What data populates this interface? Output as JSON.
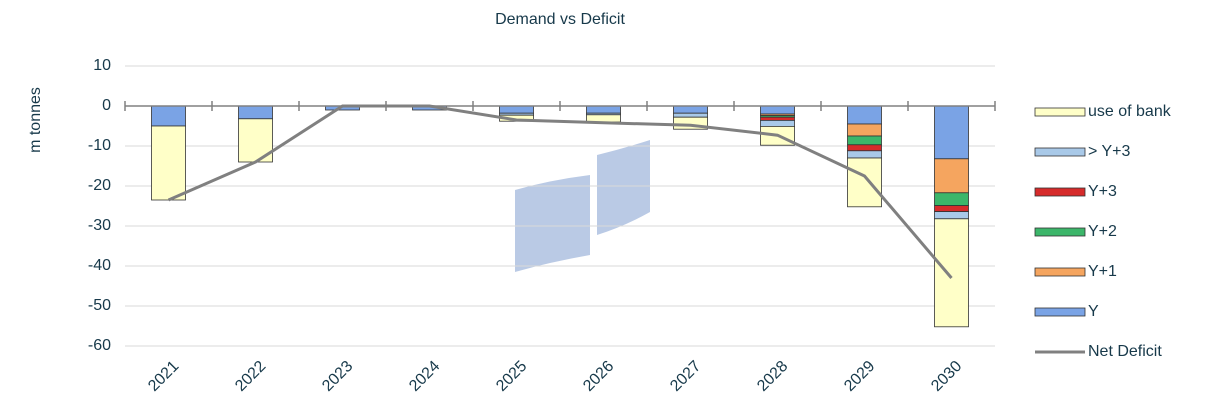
{
  "chart_data": {
    "type": "stacked_bar_line",
    "title": "Demand vs Deficit",
    "y_label": "m tonnes",
    "categories": [
      "2021",
      "2022",
      "2023",
      "2024",
      "2025",
      "2026",
      "2027",
      "2028",
      "2029",
      "2030"
    ],
    "ylim": [
      -60,
      10
    ],
    "yticks": [
      10,
      0,
      -10,
      -20,
      -30,
      -40,
      -50,
      -60
    ],
    "grid": true,
    "series": [
      {
        "name": "Y",
        "type": "bar",
        "color": "#7aa3e5",
        "values": [
          -5,
          -3.2,
          -1,
          -1,
          -1.8,
          -1.8,
          -1.8,
          -2,
          -4.5,
          -13.2
        ]
      },
      {
        "name": "Y+1",
        "type": "bar",
        "color": "#f5a55f",
        "values": [
          0,
          0,
          0,
          0,
          0,
          0,
          0,
          -0.4,
          -3,
          -8.5
        ]
      },
      {
        "name": "Y+2",
        "type": "bar",
        "color": "#3cb66a",
        "values": [
          0,
          0,
          0,
          0,
          0,
          0,
          0,
          -0.4,
          -2.2,
          -3.2
        ]
      },
      {
        "name": "Y+3",
        "type": "bar",
        "color": "#d62b2b",
        "values": [
          0,
          0,
          0,
          0,
          0,
          0,
          0,
          -0.8,
          -1.5,
          -1.5
        ]
      },
      {
        "name": "> Y+3",
        "type": "bar",
        "color": "#a9c9e8",
        "values": [
          0,
          0,
          0,
          0,
          -0.5,
          -0.4,
          -1,
          -1.5,
          -1.8,
          -1.8
        ]
      },
      {
        "name": "use of bank",
        "type": "bar",
        "color": "#ffffc8",
        "values": [
          -18.5,
          -10.8,
          0,
          0,
          -1.5,
          -1.8,
          -3,
          -4.7,
          -12.2,
          -27
        ]
      },
      {
        "name": "Net Deficit",
        "type": "line",
        "color": "#808080",
        "values": [
          -23.5,
          -14,
          0,
          0,
          -3.5,
          -4.2,
          -4.8,
          -7.3,
          -17.5,
          -43
        ]
      }
    ]
  }
}
